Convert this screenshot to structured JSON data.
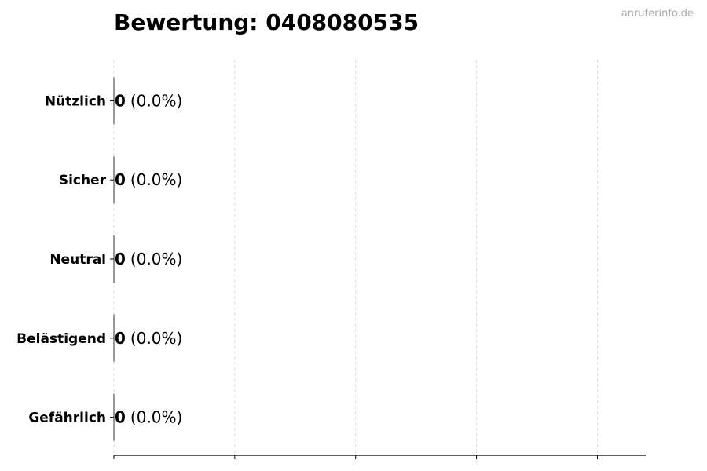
{
  "chart_data": {
    "type": "bar",
    "orientation": "horizontal",
    "title": "Bewertung: 0408080535",
    "watermark": "anruferinfo.de",
    "categories": [
      "Nützlich",
      "Sicher",
      "Neutral",
      "Belästigend",
      "Gefährlich"
    ],
    "values": [
      0,
      0,
      0,
      0,
      0
    ],
    "data_labels": [
      {
        "count": "0",
        "percent": "(0.0%)"
      },
      {
        "count": "0",
        "percent": "(0.0%)"
      },
      {
        "count": "0",
        "percent": "(0.0%)"
      },
      {
        "count": "0",
        "percent": "(0.0%)"
      },
      {
        "count": "0",
        "percent": "(0.0%)"
      }
    ],
    "xlim": [
      0,
      4.4
    ],
    "xticks": [
      0,
      1,
      2,
      3,
      4
    ],
    "xtick_labels_shown": false,
    "grid": "vertical dashed",
    "colors": {
      "grid": "#dddddd",
      "axis": "#000000",
      "text": "#000000",
      "watermark": "#aaaaaa"
    }
  }
}
